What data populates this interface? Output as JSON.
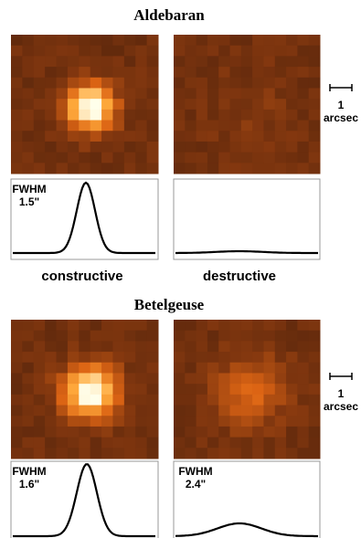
{
  "top": {
    "title": "Aldebaran",
    "fwhm_label": "FWHM",
    "fwhm_value": "1.5\""
  },
  "modes": {
    "left": "constructive",
    "right": "destructive"
  },
  "bottom": {
    "title": "Betelgeuse",
    "left_fwhm_label": "FWHM",
    "left_fwhm_value": "1.6\"",
    "right_fwhm_label": "FWHM",
    "right_fwhm_value": "2.4\""
  },
  "scales": [
    {
      "number": "1",
      "unit": "arcsec"
    },
    {
      "number": "1",
      "unit": "arcsec"
    }
  ]
}
